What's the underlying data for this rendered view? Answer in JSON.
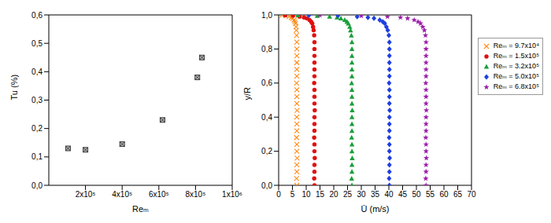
{
  "chart_data": [
    {
      "type": "scatter",
      "x_label": "Reₘ",
      "y_label": "Tu (%)",
      "marker": "boxed_x",
      "color": "#3a3a3a",
      "grid": false,
      "x": [
        105000,
        200000,
        400000,
        620000,
        810000,
        835000
      ],
      "values": [
        0.13,
        0.125,
        0.145,
        0.23,
        0.38,
        0.45
      ],
      "xlim": [
        0,
        1000000
      ],
      "xticks": [
        {
          "value": 200000,
          "label": "2x10⁵"
        },
        {
          "value": 400000,
          "label": "4x10⁵"
        },
        {
          "value": 600000,
          "label": "6x10⁵"
        },
        {
          "value": 800000,
          "label": "8x10⁵"
        },
        {
          "value": 1000000,
          "label": "1x10⁶"
        }
      ],
      "ylim": [
        0,
        0.6
      ],
      "yticks": [
        {
          "value": 0,
          "label": "0,0"
        },
        {
          "value": 0.1,
          "label": "0,1"
        },
        {
          "value": 0.2,
          "label": "0,2"
        },
        {
          "value": 0.3,
          "label": "0,3"
        },
        {
          "value": 0.4,
          "label": "0,4"
        },
        {
          "value": 0.5,
          "label": "0,5"
        },
        {
          "value": 0.6,
          "label": "0,6"
        }
      ]
    },
    {
      "type": "scatter",
      "x_label": "Ū (m/s)",
      "y_label": "y/R",
      "grid": false,
      "legend": "right",
      "xlim": [
        0,
        70
      ],
      "xticks": [
        0,
        5,
        10,
        15,
        20,
        25,
        30,
        35,
        40,
        45,
        50,
        55,
        60,
        65,
        70
      ],
      "ylim": [
        0,
        1
      ],
      "yticks": [
        {
          "value": 0,
          "label": "0,0"
        },
        {
          "value": 0.2,
          "label": "0,2"
        },
        {
          "value": 0.4,
          "label": "0,4"
        },
        {
          "value": 0.6,
          "label": "0,6"
        },
        {
          "value": 0.8,
          "label": "0,8"
        },
        {
          "value": 1,
          "label": "1,0"
        }
      ],
      "series": [
        {
          "name": "Reₘ = 9.7x10⁴",
          "color": "#ff8c1a",
          "marker": "x",
          "x": [
            6.6,
            6.5,
            6.6,
            6.6,
            6.7,
            6.6,
            6.6,
            6.5,
            6.6,
            6.6,
            6.6,
            6.7,
            6.6,
            6.6,
            6.6,
            6.5,
            6.6,
            6.6,
            6.6,
            6.6,
            6.6,
            6.6,
            6.5,
            6.4,
            6.3,
            6.1,
            5.9,
            5.6,
            5.1,
            4.6,
            3.8,
            2.6,
            1.2
          ],
          "y": [
            0,
            0.04,
            0.08,
            0.12,
            0.16,
            0.2,
            0.24,
            0.28,
            0.32,
            0.36,
            0.4,
            0.44,
            0.48,
            0.52,
            0.56,
            0.6,
            0.64,
            0.68,
            0.72,
            0.76,
            0.8,
            0.84,
            0.88,
            0.91,
            0.93,
            0.95,
            0.96,
            0.97,
            0.98,
            0.985,
            0.99,
            0.995,
            0.998
          ]
        },
        {
          "name": "Reₘ = 1.5x10⁵",
          "color": "#e01010",
          "marker": "circle",
          "x": [
            13.0,
            12.9,
            13.0,
            13.0,
            13.1,
            13.0,
            13.0,
            12.9,
            13.0,
            13.0,
            13.0,
            13.1,
            13.0,
            13.0,
            13.0,
            12.9,
            13.0,
            13.0,
            13.0,
            13.0,
            13.0,
            13.0,
            12.9,
            12.7,
            12.5,
            12.2,
            11.8,
            11.2,
            10.2,
            9.2,
            7.6,
            5.2,
            2.4
          ],
          "y": [
            0,
            0.04,
            0.08,
            0.12,
            0.16,
            0.2,
            0.24,
            0.28,
            0.32,
            0.36,
            0.4,
            0.44,
            0.48,
            0.52,
            0.56,
            0.6,
            0.64,
            0.68,
            0.72,
            0.76,
            0.8,
            0.84,
            0.88,
            0.91,
            0.93,
            0.95,
            0.96,
            0.97,
            0.98,
            0.985,
            0.99,
            0.995,
            0.998
          ]
        },
        {
          "name": "Reₘ = 3.2x10⁵",
          "color": "#1a9e3a",
          "marker": "triangle",
          "x": [
            26.6,
            26.5,
            26.6,
            26.6,
            26.7,
            26.6,
            26.6,
            26.5,
            26.6,
            26.6,
            26.6,
            26.7,
            26.6,
            26.6,
            26.6,
            26.5,
            26.6,
            26.6,
            26.6,
            26.6,
            26.6,
            26.6,
            26.4,
            26.1,
            25.8,
            25.3,
            24.8,
            24.0,
            22.6,
            21.2,
            18.5,
            14.0,
            7.0
          ],
          "y": [
            0,
            0.04,
            0.08,
            0.12,
            0.16,
            0.2,
            0.24,
            0.28,
            0.32,
            0.36,
            0.4,
            0.44,
            0.48,
            0.52,
            0.56,
            0.6,
            0.64,
            0.68,
            0.72,
            0.76,
            0.8,
            0.84,
            0.88,
            0.91,
            0.93,
            0.95,
            0.96,
            0.97,
            0.98,
            0.985,
            0.99,
            0.995,
            0.998
          ]
        },
        {
          "name": "Reₘ = 5.0x10⁵",
          "color": "#1f3fe0",
          "marker": "diamond",
          "x": [
            40.2,
            40.1,
            40.2,
            40.2,
            40.3,
            40.2,
            40.2,
            40.1,
            40.2,
            40.2,
            40.2,
            40.3,
            40.2,
            40.2,
            40.2,
            40.1,
            40.2,
            40.2,
            40.2,
            40.2,
            40.2,
            40.2,
            40.0,
            39.6,
            39.1,
            38.5,
            37.8,
            36.7,
            34.6,
            32.4,
            28.5,
            21.5,
            11.0
          ],
          "y": [
            0,
            0.04,
            0.08,
            0.12,
            0.16,
            0.2,
            0.24,
            0.28,
            0.32,
            0.36,
            0.4,
            0.44,
            0.48,
            0.52,
            0.56,
            0.6,
            0.64,
            0.68,
            0.72,
            0.76,
            0.8,
            0.84,
            0.88,
            0.91,
            0.93,
            0.95,
            0.96,
            0.97,
            0.98,
            0.985,
            0.99,
            0.995,
            0.998
          ]
        },
        {
          "name": "Reₘ = 6.8x10⁵",
          "color": "#9b1fa8",
          "marker": "star",
          "x": [
            53.5,
            53.4,
            53.5,
            53.5,
            53.6,
            53.5,
            53.5,
            53.4,
            53.5,
            53.5,
            53.5,
            53.6,
            53.5,
            53.5,
            53.5,
            53.4,
            53.5,
            53.5,
            53.5,
            53.5,
            53.5,
            53.5,
            53.3,
            52.9,
            52.3,
            51.5,
            50.6,
            49.2,
            46.8,
            44.2,
            39.5,
            30.0,
            15.0
          ],
          "y": [
            0,
            0.04,
            0.08,
            0.12,
            0.16,
            0.2,
            0.24,
            0.28,
            0.32,
            0.36,
            0.4,
            0.44,
            0.48,
            0.52,
            0.56,
            0.6,
            0.64,
            0.68,
            0.72,
            0.76,
            0.8,
            0.84,
            0.88,
            0.91,
            0.93,
            0.95,
            0.96,
            0.97,
            0.98,
            0.985,
            0.99,
            0.995,
            0.998
          ]
        }
      ]
    }
  ]
}
